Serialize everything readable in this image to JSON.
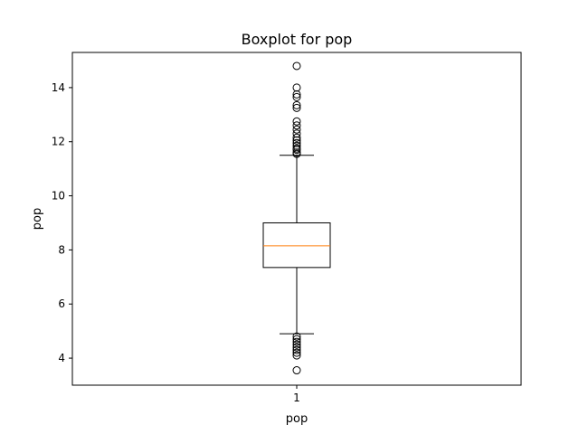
{
  "chart_data": {
    "type": "boxplot",
    "title": "Boxplot for pop",
    "xlabel": "pop",
    "ylabel": "pop",
    "categories": [
      "1"
    ],
    "ylim": [
      3.0,
      15.3
    ],
    "yticks": [
      4,
      6,
      8,
      10,
      12,
      14
    ],
    "grid": false,
    "legend": "none",
    "box": {
      "whisker_low": 4.9,
      "q1": 7.35,
      "median": 8.15,
      "q3": 9.0,
      "whisker_high": 11.5,
      "outliers_high": [
        11.55,
        11.6,
        11.7,
        11.75,
        11.85,
        11.95,
        12.05,
        12.15,
        12.3,
        12.45,
        12.6,
        12.75,
        13.25,
        13.35,
        13.65,
        13.75,
        14.0,
        14.8
      ],
      "outliers_low": [
        4.8,
        4.7,
        4.6,
        4.5,
        4.4,
        4.3,
        4.2,
        4.1,
        3.55
      ]
    },
    "colors": {
      "box": "#000000",
      "median": "#ff7f0e",
      "outlier": "#000000"
    }
  }
}
